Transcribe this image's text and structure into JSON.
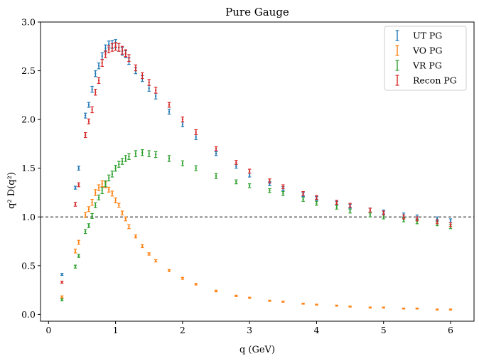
{
  "chart_data": {
    "type": "scatter",
    "title": "Pure Gauge",
    "xlabel": "q (GeV)",
    "ylabel": "q² D(q²)",
    "xlim": [
      -0.12,
      6.35
    ],
    "ylim": [
      -0.07,
      3.0
    ],
    "xticks": [
      0,
      1,
      2,
      3,
      4,
      5,
      6
    ],
    "yticks": [
      0.0,
      0.5,
      1.0,
      1.5,
      2.0,
      2.5,
      3.0
    ],
    "xtick_labels": [
      "0",
      "1",
      "2",
      "3",
      "4",
      "5",
      "6"
    ],
    "ytick_labels": [
      "0.0",
      "0.5",
      "1.0",
      "1.5",
      "2.0",
      "2.5",
      "3.0"
    ],
    "reference_line": {
      "y": 1.0,
      "style": "dashed",
      "color": "#000000"
    },
    "legend_position": "top-right",
    "legend": [
      "UT PG",
      "VO PG",
      "VR PG",
      "Recon PG"
    ],
    "series": [
      {
        "name": "UT PG",
        "color": "#1f77b4",
        "x": [
          0.2,
          0.4,
          0.45,
          0.55,
          0.6,
          0.65,
          0.7,
          0.75,
          0.8,
          0.85,
          0.9,
          0.95,
          1.0,
          1.05,
          1.1,
          1.15,
          1.2,
          1.3,
          1.4,
          1.5,
          1.6,
          1.8,
          2.0,
          2.2,
          2.5,
          2.8,
          3.0,
          3.3,
          3.5,
          3.8,
          4.0,
          4.3,
          4.5,
          4.8,
          5.0,
          5.3,
          5.5,
          5.8,
          6.0
        ],
        "y": [
          0.41,
          1.3,
          1.5,
          2.04,
          2.15,
          2.31,
          2.47,
          2.55,
          2.65,
          2.73,
          2.77,
          2.77,
          2.78,
          2.74,
          2.7,
          2.67,
          2.6,
          2.5,
          2.42,
          2.32,
          2.24,
          2.08,
          1.95,
          1.82,
          1.65,
          1.52,
          1.43,
          1.34,
          1.29,
          1.23,
          1.19,
          1.14,
          1.11,
          1.07,
          1.05,
          1.02,
          1.0,
          0.98,
          0.96
        ],
        "err": [
          0.01,
          0.015,
          0.02,
          0.025,
          0.025,
          0.03,
          0.03,
          0.03,
          0.035,
          0.035,
          0.035,
          0.04,
          0.04,
          0.04,
          0.04,
          0.035,
          0.035,
          0.03,
          0.03,
          0.03,
          0.03,
          0.025,
          0.025,
          0.025,
          0.02,
          0.02,
          0.02,
          0.02,
          0.02,
          0.02,
          0.02,
          0.02,
          0.02,
          0.02,
          0.02,
          0.02,
          0.02,
          0.02,
          0.02
        ]
      },
      {
        "name": "VO PG",
        "color": "#ff7f0e",
        "x": [
          0.2,
          0.4,
          0.45,
          0.55,
          0.6,
          0.65,
          0.7,
          0.75,
          0.8,
          0.85,
          0.9,
          0.95,
          1.0,
          1.05,
          1.1,
          1.15,
          1.2,
          1.3,
          1.4,
          1.5,
          1.6,
          1.8,
          2.0,
          2.2,
          2.5,
          2.8,
          3.0,
          3.3,
          3.5,
          3.8,
          4.0,
          4.3,
          4.5,
          4.8,
          5.0,
          5.3,
          5.5,
          5.8,
          6.0
        ],
        "y": [
          0.18,
          0.65,
          0.74,
          1.02,
          1.08,
          1.15,
          1.25,
          1.3,
          1.34,
          1.33,
          1.28,
          1.24,
          1.17,
          1.12,
          1.04,
          0.98,
          0.9,
          0.8,
          0.7,
          0.62,
          0.55,
          0.45,
          0.37,
          0.31,
          0.24,
          0.19,
          0.17,
          0.14,
          0.13,
          0.11,
          0.1,
          0.09,
          0.08,
          0.07,
          0.07,
          0.06,
          0.06,
          0.05,
          0.05
        ],
        "err": [
          0.01,
          0.02,
          0.02,
          0.025,
          0.025,
          0.03,
          0.03,
          0.03,
          0.03,
          0.03,
          0.025,
          0.025,
          0.025,
          0.02,
          0.02,
          0.02,
          0.02,
          0.015,
          0.015,
          0.012,
          0.012,
          0.01,
          0.01,
          0.008,
          0.008,
          0.007,
          0.006,
          0.006,
          0.005,
          0.005,
          0.005,
          0.005,
          0.005,
          0.005,
          0.005,
          0.005,
          0.005,
          0.005,
          0.005
        ]
      },
      {
        "name": "VR PG",
        "color": "#2ca02c",
        "x": [
          0.2,
          0.4,
          0.45,
          0.55,
          0.6,
          0.65,
          0.7,
          0.75,
          0.8,
          0.85,
          0.9,
          0.95,
          1.0,
          1.05,
          1.1,
          1.15,
          1.2,
          1.3,
          1.4,
          1.5,
          1.6,
          1.8,
          2.0,
          2.2,
          2.5,
          2.8,
          3.0,
          3.3,
          3.5,
          3.8,
          4.0,
          4.3,
          4.5,
          4.8,
          5.0,
          5.3,
          5.5,
          5.8,
          6.0
        ],
        "y": [
          0.15,
          0.49,
          0.6,
          0.85,
          0.91,
          1.01,
          1.12,
          1.2,
          1.27,
          1.34,
          1.4,
          1.44,
          1.5,
          1.54,
          1.57,
          1.6,
          1.62,
          1.65,
          1.66,
          1.65,
          1.64,
          1.6,
          1.55,
          1.5,
          1.42,
          1.36,
          1.32,
          1.27,
          1.24,
          1.18,
          1.14,
          1.1,
          1.06,
          1.02,
          1.0,
          0.97,
          0.95,
          0.93,
          0.9
        ],
        "err": [
          0.01,
          0.015,
          0.015,
          0.02,
          0.02,
          0.025,
          0.025,
          0.025,
          0.03,
          0.03,
          0.03,
          0.03,
          0.03,
          0.03,
          0.03,
          0.03,
          0.03,
          0.03,
          0.03,
          0.03,
          0.03,
          0.03,
          0.025,
          0.025,
          0.025,
          0.02,
          0.02,
          0.02,
          0.02,
          0.02,
          0.02,
          0.02,
          0.02,
          0.02,
          0.02,
          0.02,
          0.02,
          0.02,
          0.02
        ]
      },
      {
        "name": "Recon PG",
        "color": "#d62728",
        "x": [
          0.2,
          0.4,
          0.45,
          0.55,
          0.6,
          0.65,
          0.7,
          0.75,
          0.8,
          0.85,
          0.9,
          0.95,
          1.0,
          1.05,
          1.1,
          1.15,
          1.2,
          1.3,
          1.4,
          1.5,
          1.6,
          1.8,
          2.0,
          2.2,
          2.5,
          2.8,
          3.0,
          3.3,
          3.5,
          3.8,
          4.0,
          4.3,
          4.5,
          4.8,
          5.0,
          5.3,
          5.5,
          5.8,
          6.0
        ],
        "y": [
          0.33,
          1.13,
          1.33,
          1.84,
          1.98,
          2.1,
          2.28,
          2.4,
          2.58,
          2.67,
          2.72,
          2.74,
          2.75,
          2.74,
          2.71,
          2.68,
          2.63,
          2.53,
          2.45,
          2.38,
          2.3,
          2.15,
          2.0,
          1.87,
          1.7,
          1.56,
          1.47,
          1.37,
          1.31,
          1.24,
          1.2,
          1.15,
          1.12,
          1.07,
          1.04,
          1.0,
          0.98,
          0.95,
          0.92
        ],
        "err": [
          0.01,
          0.02,
          0.02,
          0.025,
          0.025,
          0.03,
          0.03,
          0.03,
          0.035,
          0.035,
          0.035,
          0.04,
          0.04,
          0.04,
          0.04,
          0.035,
          0.035,
          0.03,
          0.03,
          0.03,
          0.03,
          0.025,
          0.025,
          0.025,
          0.02,
          0.02,
          0.02,
          0.02,
          0.02,
          0.02,
          0.02,
          0.02,
          0.02,
          0.02,
          0.02,
          0.02,
          0.02,
          0.02,
          0.02
        ]
      }
    ]
  }
}
